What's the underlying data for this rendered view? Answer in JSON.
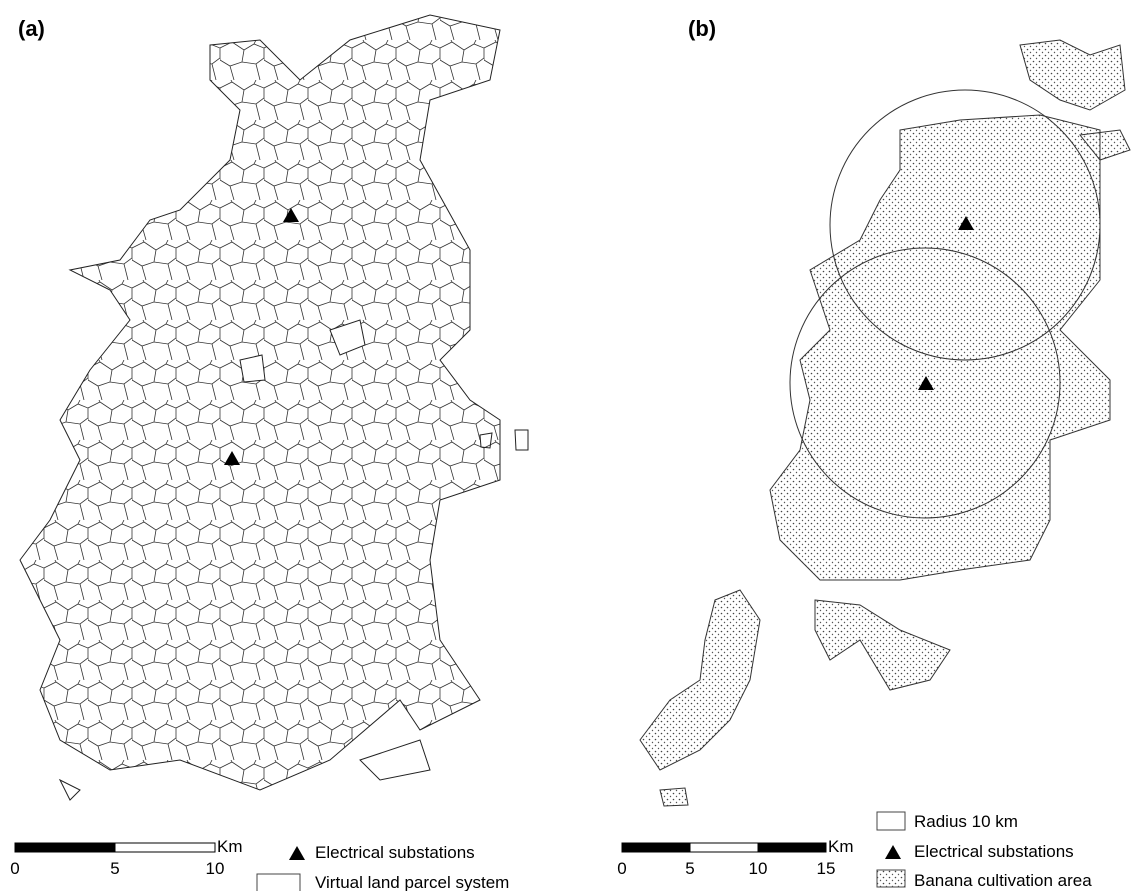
{
  "panels": [
    {
      "label": "(a)",
      "scale": {
        "ticks": [
          0,
          5,
          10
        ],
        "unit": "Km"
      },
      "legend": [
        "Electrical substations",
        "Virtual land parcel system"
      ]
    },
    {
      "label": "(b)",
      "scale": {
        "ticks": [
          0,
          5,
          10,
          15
        ],
        "unit": "Km"
      },
      "legend": [
        "Radius 10 km",
        "Electrical substations",
        "Banana cultivation area"
      ]
    }
  ]
}
